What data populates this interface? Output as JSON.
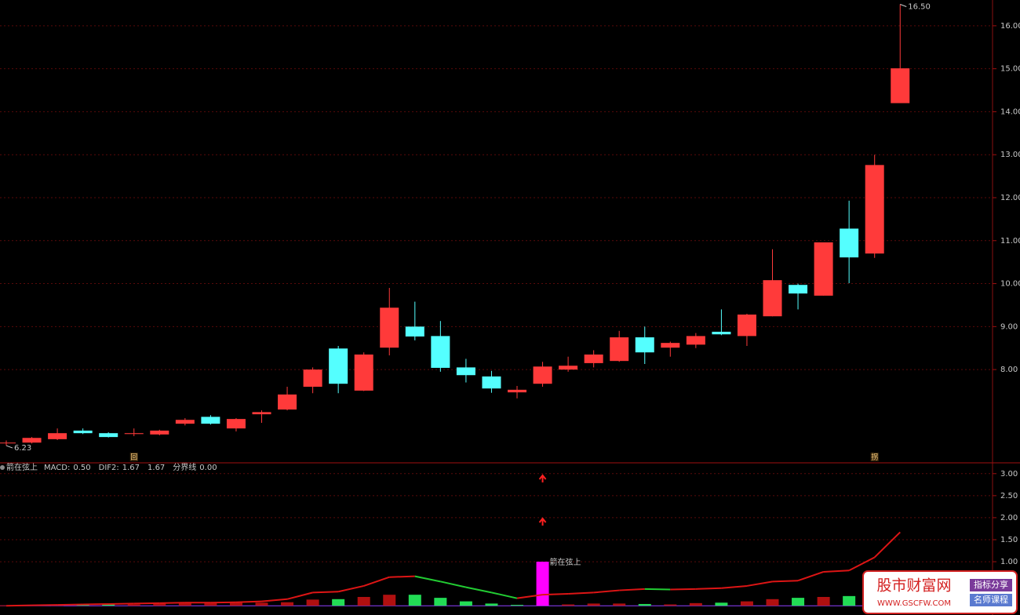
{
  "chart_data": [
    {
      "type": "candlestick",
      "categories": [
        null,
        null,
        null,
        null,
        null,
        null,
        null,
        null,
        null,
        null,
        null,
        null,
        null,
        null,
        null,
        null,
        null,
        null,
        null,
        null,
        null,
        null,
        null,
        null,
        null,
        null,
        null,
        null,
        null,
        null,
        null,
        null,
        null,
        null,
        null,
        null
      ],
      "open": [
        6.3,
        6.3,
        6.38,
        6.58,
        6.52,
        6.5,
        6.49,
        6.74,
        6.9,
        6.63,
        6.96,
        7.07,
        7.6,
        8.49,
        7.51,
        8.51,
        9.0,
        8.78,
        8.05,
        7.84,
        7.47,
        7.67,
        8.0,
        8.15,
        8.2,
        8.75,
        8.51,
        8.58,
        8.88,
        8.78,
        9.24,
        9.97,
        9.72,
        11.28,
        10.7,
        14.2
      ],
      "close": [
        6.3,
        6.41,
        6.52,
        6.52,
        6.43,
        6.52,
        6.58,
        6.83,
        6.74,
        6.85,
        7.01,
        7.42,
        8.0,
        7.67,
        8.35,
        9.44,
        8.77,
        8.04,
        7.87,
        7.56,
        7.53,
        8.07,
        8.09,
        8.35,
        8.75,
        8.4,
        8.62,
        8.78,
        8.82,
        9.28,
        10.08,
        9.77,
        10.96,
        10.61,
        12.76,
        15.01
      ],
      "high": [
        6.35,
        6.43,
        6.63,
        6.63,
        6.54,
        6.63,
        6.6,
        6.87,
        6.94,
        6.87,
        7.05,
        7.6,
        8.05,
        8.55,
        8.4,
        9.9,
        9.58,
        9.13,
        8.25,
        7.97,
        7.62,
        8.18,
        8.3,
        8.45,
        8.9,
        9.0,
        8.65,
        8.85,
        9.4,
        9.3,
        10.8,
        10.0,
        10.96,
        11.93,
        13.0,
        16.5
      ],
      "low": [
        6.23,
        6.28,
        6.36,
        6.5,
        6.42,
        6.45,
        6.47,
        6.7,
        6.72,
        6.56,
        6.76,
        7.05,
        7.45,
        7.45,
        7.5,
        8.33,
        8.68,
        7.95,
        7.7,
        7.46,
        7.33,
        7.6,
        7.95,
        8.05,
        8.18,
        8.13,
        8.3,
        8.5,
        8.8,
        8.55,
        9.24,
        9.4,
        9.72,
        10.01,
        10.6,
        14.2
      ],
      "up_color": "#ff3a3a",
      "down_color": "#54ffff",
      "ylim": [
        5.83,
        16.6
      ],
      "yticks": [
        {
          "value": 8,
          "label": "8.00"
        },
        {
          "value": 9,
          "label": "9.00"
        },
        {
          "value": 10,
          "label": "10.00"
        },
        {
          "value": 11,
          "label": "11.00"
        },
        {
          "value": 12,
          "label": "12.00"
        },
        {
          "value": 13,
          "label": "13.00"
        },
        {
          "value": 14,
          "label": "14.00"
        },
        {
          "value": 15,
          "label": "15.00"
        },
        {
          "value": 16,
          "label": "16.00"
        }
      ],
      "grid": true,
      "annotations": [
        {
          "text": "6.23",
          "index": 0,
          "value": 6.23
        },
        {
          "text": "16.50",
          "index": 35,
          "value": 16.5
        }
      ],
      "markers": [
        {
          "text": "回",
          "index": 5
        },
        {
          "text": "拐",
          "index": 34
        }
      ]
    },
    {
      "type": "macd",
      "title": "箭在弦上",
      "legend": [
        {
          "name": "MACD:",
          "value": 0.5,
          "value_label": "0.50",
          "color": "#ffffff"
        },
        {
          "name": "DIF2:",
          "value": 1.67,
          "value_label": "1.67",
          "color": "#e050e0"
        },
        {
          "value": 1.67,
          "value_label": "1.67",
          "color": "#ff6aa0"
        },
        {
          "name": "分界线",
          "value": 0,
          "value_label": "0.00",
          "color": "#b050ff"
        }
      ],
      "series": [
        {
          "name": "DIF2",
          "up_color": "#dd1515",
          "down_color": "#22cc33",
          "values": [
            0.0,
            0.01,
            0.02,
            0.03,
            0.04,
            0.05,
            0.06,
            0.07,
            0.07,
            0.08,
            0.1,
            0.15,
            0.3,
            0.32,
            0.45,
            0.65,
            0.67,
            0.55,
            0.42,
            0.3,
            0.17,
            0.25,
            0.27,
            0.3,
            0.35,
            0.38,
            0.37,
            0.38,
            0.4,
            0.45,
            0.55,
            0.57,
            0.77,
            0.8,
            1.1,
            1.67
          ]
        }
      ],
      "bars": {
        "values": [
          0.01,
          0.02,
          0.02,
          0.03,
          0.05,
          0.03,
          0.05,
          0.08,
          0.07,
          0.07,
          0.07,
          0.08,
          0.14,
          0.15,
          0.2,
          0.25,
          0.25,
          0.18,
          0.1,
          0.05,
          0.02,
          null,
          0.03,
          0.05,
          0.05,
          0.04,
          0.03,
          0.06,
          0.07,
          0.1,
          0.15,
          0.18,
          0.2,
          0.22,
          0.25,
          0.25
        ],
        "colors": [
          "#b01010",
          "#b01010",
          "#b01010",
          "#22dd55",
          "#22dd55",
          "#b01010",
          "#b01010",
          "#b01010",
          "#b01010",
          "#b01010",
          "#b01010",
          "#b01010",
          "#b01010",
          "#22dd55",
          "#b01010",
          "#b01010",
          "#22dd55",
          "#22dd55",
          "#22dd55",
          "#22dd55",
          "#22dd55",
          null,
          "#b01010",
          "#b01010",
          "#b01010",
          "#22dd55",
          "#b01010",
          "#b01010",
          "#22dd55",
          "#b01010",
          "#b01010",
          "#22dd55",
          "#b01010",
          "#22dd55",
          "#b01010",
          "#b01010"
        ]
      },
      "signal": {
        "index": 21,
        "value": 1.0,
        "color": "#ff00ff",
        "label": "箭在弦上"
      },
      "arrows": {
        "index": 21,
        "values": [
          2.89,
          1.91
        ],
        "color": "#ff2020"
      },
      "baseline": {
        "value": 0,
        "color": "#9040ff"
      },
      "ylim": [
        -0.21,
        3.21
      ],
      "yticks": [
        {
          "value": 1,
          "label": "1.00"
        },
        {
          "value": 1.5,
          "label": "1.50"
        },
        {
          "value": 2,
          "label": "2.00"
        },
        {
          "value": 2.5,
          "label": "2.50"
        },
        {
          "value": 3,
          "label": "3.00"
        }
      ],
      "grid": true
    }
  ],
  "watermark": {
    "title": "股市财富网",
    "url": "WWW.GSCFW.COM",
    "tags": [
      "指标分享",
      "名师课程"
    ]
  }
}
